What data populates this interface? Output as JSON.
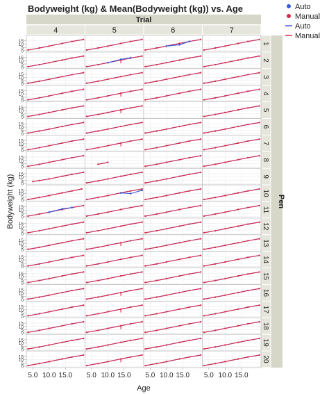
{
  "chart_data": {
    "type": "line",
    "title": "Bodyweight (kg) & Mean(Bodyweight (kg)) vs. Age",
    "xlabel": "Age",
    "ylabel": "Bodyweight (kg)",
    "column_group_label": "Trial",
    "row_group_label": "Pen",
    "columns": [
      "4",
      "5",
      "6",
      "7"
    ],
    "rows": [
      "1",
      "2",
      "3",
      "4",
      "5",
      "6",
      "7",
      "8",
      "9",
      "10",
      "11",
      "12",
      "13",
      "14",
      "15",
      "16",
      "17",
      "18",
      "19",
      "20"
    ],
    "xlim": [
      3,
      21
    ],
    "ylim": [
      0,
      20
    ],
    "x_ticks": [
      "5.0",
      "10.0",
      "15.0"
    ],
    "x_tick_values": [
      5,
      10,
      15
    ],
    "y_ticks": [
      "0",
      "5",
      "10",
      "15"
    ],
    "y_tick_values": [
      0,
      5,
      10,
      15
    ],
    "grid": true,
    "legend_position": "top-right",
    "legend": [
      {
        "label": "Auto",
        "kind": "marker",
        "color": "#3a5bd9"
      },
      {
        "label": "Manual",
        "kind": "marker",
        "color": "#d8294a"
      },
      {
        "label": "Auto",
        "kind": "line",
        "color": "#3a5bd9"
      },
      {
        "label": "Manual",
        "kind": "line",
        "color": "#d8294a"
      }
    ],
    "typical_curve": {
      "x": [
        3.5,
        7,
        10,
        14,
        17,
        20.5
      ],
      "y": [
        1,
        4,
        7,
        11,
        14,
        17
      ]
    },
    "cell_overrides": {
      "7-1": {
        "x": [
          7,
          10
        ],
        "y": [
          4,
          7
        ]
      },
      "8-0": {
        "x": [
          5,
          7,
          10,
          14,
          17,
          20.5
        ],
        "y": [
          3,
          4.5,
          7,
          11,
          14,
          17
        ]
      },
      "4-2": null,
      "8-3": null,
      "9-0": {
        "x": [
          3.5,
          7,
          10,
          14,
          17,
          20
        ],
        "y": [
          1,
          4,
          7,
          11,
          14,
          17
        ]
      },
      "8-1": {
        "x": [
          3.5,
          7,
          10,
          14,
          17,
          20.5
        ],
        "y": [
          1,
          4,
          7,
          11,
          14,
          17
        ]
      }
    },
    "auto_deviations": [
      {
        "row": 1,
        "col": 1,
        "x": [
          10,
          14,
          17
        ],
        "y": [
          7,
          12,
          14.5
        ]
      },
      {
        "row": 9,
        "col": 1,
        "x": [
          14,
          17,
          20.5
        ],
        "y": [
          11,
          10,
          15
        ]
      },
      {
        "row": 0,
        "col": 2,
        "x": [
          10,
          14,
          17
        ],
        "y": [
          7,
          9,
          14
        ]
      },
      {
        "row": 10,
        "col": 0,
        "x": [
          10,
          14,
          17
        ],
        "y": [
          7,
          12,
          14
        ]
      }
    ],
    "manual_bumps": [
      {
        "row": 1,
        "col": 1,
        "x": 14,
        "y": [
          6,
          11
        ]
      },
      {
        "row": 3,
        "col": 1,
        "x": 14,
        "y": [
          6,
          11
        ]
      },
      {
        "row": 4,
        "col": 1,
        "x": 14,
        "y": [
          6,
          11
        ]
      },
      {
        "row": 6,
        "col": 1,
        "x": 14,
        "y": [
          6,
          11
        ]
      },
      {
        "row": 12,
        "col": 1,
        "x": 14,
        "y": [
          6,
          11
        ]
      },
      {
        "row": 15,
        "col": 1,
        "x": 14,
        "y": [
          6,
          11
        ]
      },
      {
        "row": 16,
        "col": 1,
        "x": 14,
        "y": [
          6,
          11
        ]
      },
      {
        "row": 17,
        "col": 1,
        "x": 14,
        "y": [
          6,
          11
        ]
      },
      {
        "row": 19,
        "col": 1,
        "x": 14,
        "y": [
          6,
          11
        ]
      }
    ]
  }
}
